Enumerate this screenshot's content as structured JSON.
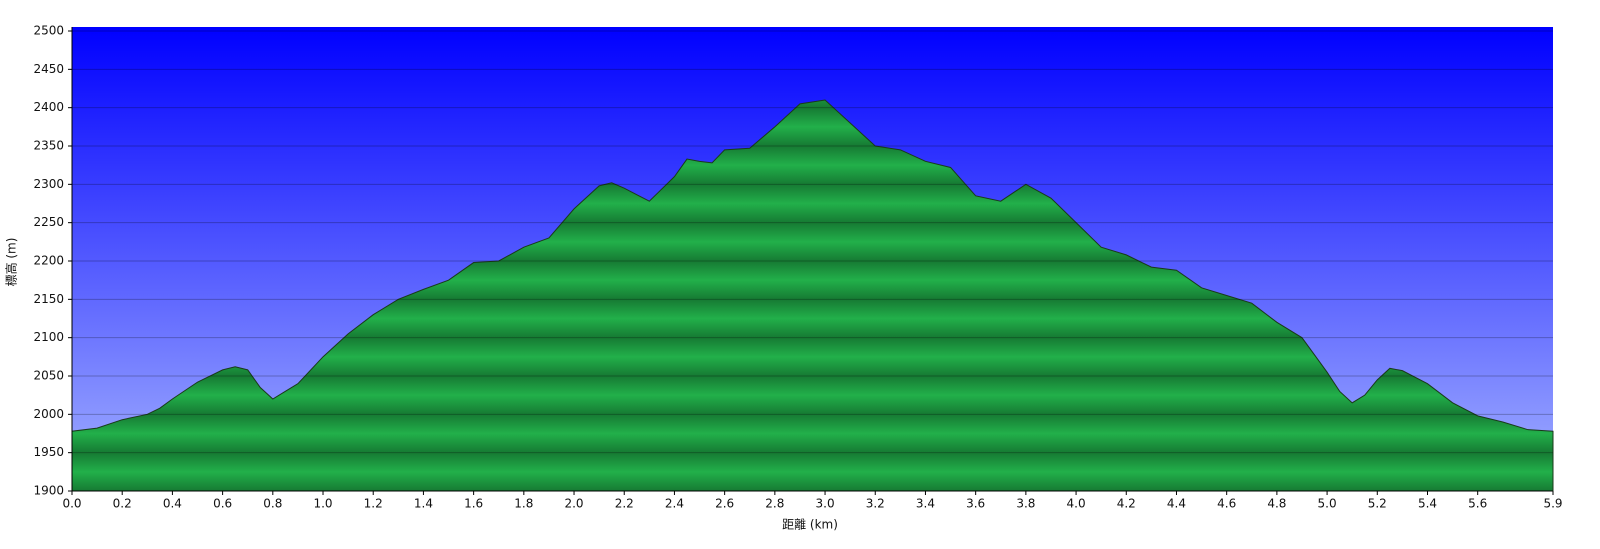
{
  "chart_data": {
    "type": "area",
    "x_label": "距離 (km)",
    "y_label": "標高 (m)",
    "x": [
      0.0,
      0.1,
      0.2,
      0.3,
      0.35,
      0.4,
      0.5,
      0.6,
      0.65,
      0.7,
      0.75,
      0.8,
      0.85,
      0.9,
      1.0,
      1.1,
      1.2,
      1.3,
      1.4,
      1.5,
      1.6,
      1.7,
      1.8,
      1.9,
      2.0,
      2.1,
      2.15,
      2.2,
      2.3,
      2.4,
      2.45,
      2.5,
      2.55,
      2.6,
      2.7,
      2.8,
      2.9,
      3.0,
      3.1,
      3.2,
      3.3,
      3.4,
      3.5,
      3.6,
      3.7,
      3.8,
      3.9,
      4.0,
      4.1,
      4.2,
      4.3,
      4.4,
      4.5,
      4.6,
      4.7,
      4.8,
      4.9,
      5.0,
      5.05,
      5.1,
      5.15,
      5.2,
      5.25,
      5.3,
      5.4,
      5.5,
      5.6,
      5.7,
      5.8,
      5.9
    ],
    "values": [
      1978,
      1982,
      1993,
      2000,
      2008,
      2020,
      2042,
      2058,
      2062,
      2058,
      2035,
      2020,
      2030,
      2040,
      2075,
      2105,
      2130,
      2150,
      2163,
      2175,
      2198,
      2200,
      2218,
      2230,
      2268,
      2298,
      2302,
      2295,
      2278,
      2310,
      2333,
      2330,
      2328,
      2345,
      2347,
      2375,
      2405,
      2410,
      2380,
      2350,
      2345,
      2330,
      2322,
      2285,
      2278,
      2300,
      2282,
      2250,
      2218,
      2208,
      2192,
      2188,
      2165,
      2155,
      2145,
      2120,
      2100,
      2055,
      2030,
      2015,
      2025,
      2045,
      2060,
      2057,
      2040,
      2015,
      1998,
      1990,
      1980,
      1978
    ],
    "color": "#22b04a",
    "xlim": [
      0,
      5.9
    ],
    "xticks": [
      {
        "value": 0,
        "label": "0.0"
      },
      0.2,
      0.4,
      0.6,
      0.8,
      {
        "value": 1,
        "label": "1.0"
      },
      1.2,
      1.4,
      1.6,
      1.8,
      {
        "value": 2,
        "label": "2.0"
      },
      2.2,
      2.4,
      2.6,
      2.8,
      {
        "value": 3,
        "label": "3.0"
      },
      3.2,
      3.4,
      3.6,
      3.8,
      {
        "value": 4,
        "label": "4.0"
      },
      4.2,
      4.4,
      4.6,
      4.8,
      {
        "value": 5,
        "label": "5.0"
      },
      5.2,
      5.4,
      5.6,
      5.9
    ],
    "ylim": [
      1900,
      2500
    ],
    "yticks": [
      1900,
      1950,
      2000,
      2050,
      2100,
      2150,
      2200,
      2250,
      2300,
      2350,
      2400,
      2450,
      2500
    ],
    "grid": true
  }
}
